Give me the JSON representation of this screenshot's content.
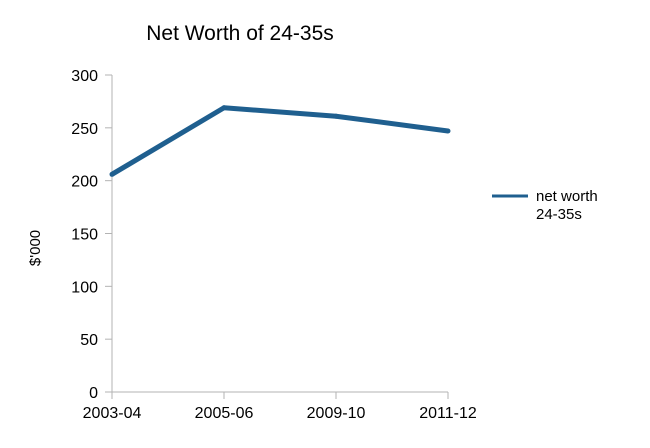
{
  "chart_data": {
    "type": "line",
    "title": "Net Worth of 24-35s",
    "xlabel": "",
    "ylabel": "$'000",
    "categories": [
      "2003-04",
      "2005-06",
      "2009-10",
      "2011-12"
    ],
    "series": [
      {
        "name": "net worth 24-35s",
        "legend_lines": [
          "net worth",
          "24-35s"
        ],
        "values": [
          206,
          269,
          261,
          247
        ],
        "color": "#1f5f8f"
      }
    ],
    "ylim": [
      0,
      300
    ],
    "yticks": [
      0,
      50,
      100,
      150,
      200,
      250,
      300
    ],
    "grid": false,
    "legend_position": "right"
  }
}
